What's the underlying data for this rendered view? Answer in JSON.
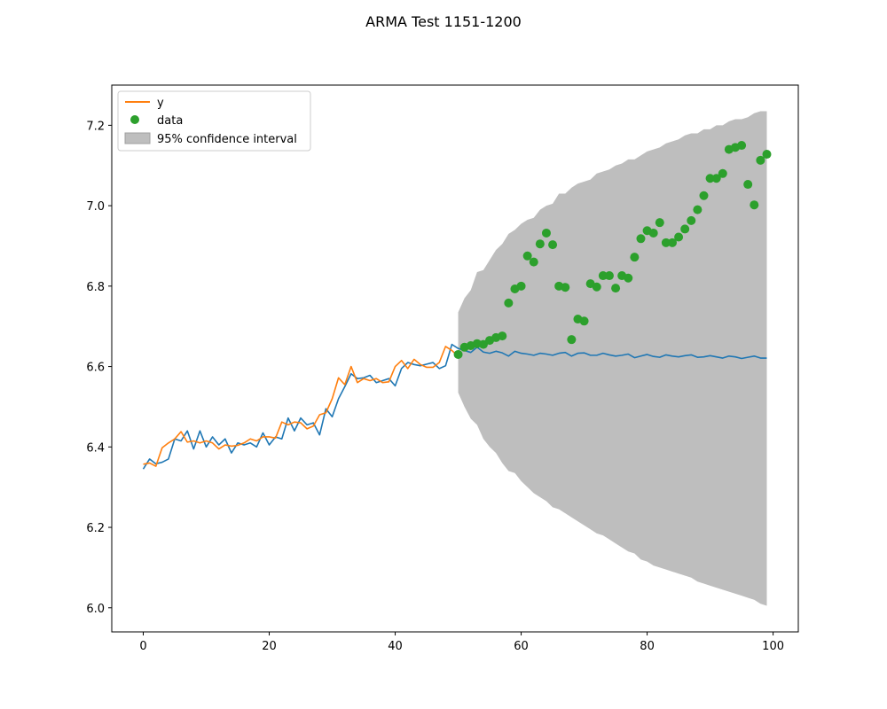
{
  "chart_data": {
    "type": "line",
    "title": "ARMA Test 1151-1200",
    "xlabel": "",
    "ylabel": "",
    "xlim": [
      -5,
      104
    ],
    "ylim": [
      5.94,
      7.3
    ],
    "xticks": [
      0,
      20,
      40,
      60,
      80,
      100
    ],
    "yticks": [
      6.0,
      6.2,
      6.4,
      6.6,
      6.8,
      7.0,
      7.2
    ],
    "grid": false,
    "legend_position": "top-left",
    "legend": {
      "y_label": "y",
      "data_label": "data",
      "ci_label": "95% confidence interval"
    },
    "colors": {
      "fitted": "#1f77b4",
      "y": "#ff7f0e",
      "data": "#2ca02c",
      "ci": "#bebebe"
    },
    "series": [
      {
        "name": "",
        "color": "#1f77b4",
        "x": [
          0,
          1,
          2,
          3,
          4,
          5,
          6,
          7,
          8,
          9,
          10,
          11,
          12,
          13,
          14,
          15,
          16,
          17,
          18,
          19,
          20,
          21,
          22,
          23,
          24,
          25,
          26,
          27,
          28,
          29,
          30,
          31,
          32,
          33,
          34,
          35,
          36,
          37,
          38,
          39,
          40,
          41,
          42,
          43,
          44,
          45,
          46,
          47,
          48,
          49,
          50,
          51,
          52,
          53,
          54,
          55,
          56,
          57,
          58,
          59,
          60,
          61,
          62,
          63,
          64,
          65,
          66,
          67,
          68,
          69,
          70,
          71,
          72,
          73,
          74,
          75,
          76,
          77,
          78,
          79,
          80,
          81,
          82,
          83,
          84,
          85,
          86,
          87,
          88,
          89,
          90,
          91,
          92,
          93,
          94,
          95,
          96,
          97,
          98,
          99
        ],
        "values": [
          6.345,
          6.37,
          6.358,
          6.362,
          6.37,
          6.42,
          6.415,
          6.44,
          6.395,
          6.44,
          6.4,
          6.425,
          6.405,
          6.42,
          6.385,
          6.41,
          6.405,
          6.41,
          6.4,
          6.435,
          6.405,
          6.425,
          6.42,
          6.472,
          6.44,
          6.472,
          6.455,
          6.46,
          6.43,
          6.495,
          6.475,
          6.52,
          6.55,
          6.582,
          6.57,
          6.572,
          6.578,
          6.56,
          6.565,
          6.57,
          6.552,
          6.595,
          6.61,
          6.605,
          6.602,
          6.606,
          6.61,
          6.595,
          6.602,
          6.655,
          6.645,
          6.64,
          6.635,
          6.648,
          6.636,
          6.633,
          6.638,
          6.634,
          6.626,
          6.638,
          6.633,
          6.631,
          6.628,
          6.633,
          6.631,
          6.628,
          6.633,
          6.635,
          6.626,
          6.633,
          6.634,
          6.628,
          6.628,
          6.633,
          6.629,
          6.626,
          6.628,
          6.631,
          6.622,
          6.626,
          6.63,
          6.625,
          6.623,
          6.629,
          6.626,
          6.624,
          6.627,
          6.629,
          6.623,
          6.624,
          6.627,
          6.624,
          6.621,
          6.626,
          6.624,
          6.62,
          6.623,
          6.626,
          6.621,
          6.621
        ]
      },
      {
        "name": "y",
        "color": "#ff7f0e",
        "x": [
          0,
          1,
          2,
          3,
          4,
          5,
          6,
          7,
          8,
          9,
          10,
          11,
          12,
          13,
          14,
          15,
          16,
          17,
          18,
          19,
          20,
          21,
          22,
          23,
          24,
          25,
          26,
          27,
          28,
          29,
          30,
          31,
          32,
          33,
          34,
          35,
          36,
          37,
          38,
          39,
          40,
          41,
          42,
          43,
          44,
          45,
          46,
          47,
          48,
          49,
          50
        ],
        "values": [
          6.357,
          6.36,
          6.352,
          6.398,
          6.41,
          6.42,
          6.438,
          6.412,
          6.415,
          6.41,
          6.415,
          6.41,
          6.395,
          6.405,
          6.402,
          6.404,
          6.41,
          6.42,
          6.415,
          6.425,
          6.425,
          6.422,
          6.462,
          6.455,
          6.462,
          6.46,
          6.445,
          6.452,
          6.48,
          6.485,
          6.52,
          6.572,
          6.555,
          6.6,
          6.56,
          6.57,
          6.565,
          6.57,
          6.56,
          6.562,
          6.6,
          6.615,
          6.595,
          6.618,
          6.605,
          6.598,
          6.598,
          6.61,
          6.65,
          6.64,
          6.625
        ]
      }
    ],
    "data_points": {
      "name": "data",
      "color": "#2ca02c",
      "x": [
        50,
        51,
        52,
        53,
        54,
        55,
        56,
        57,
        58,
        59,
        60,
        61,
        62,
        63,
        64,
        65,
        66,
        67,
        68,
        69,
        70,
        71,
        72,
        73,
        74,
        75,
        76,
        77,
        78,
        79,
        80,
        81,
        82,
        83,
        84,
        85,
        86,
        87,
        88,
        89,
        90,
        91,
        92,
        93,
        94,
        95,
        96,
        97,
        98,
        99
      ],
      "values": [
        6.63,
        6.648,
        6.652,
        6.657,
        6.655,
        6.665,
        6.672,
        6.676,
        6.758,
        6.793,
        6.8,
        6.875,
        6.86,
        6.905,
        6.932,
        6.903,
        6.8,
        6.797,
        6.667,
        6.718,
        6.713,
        6.806,
        6.798,
        6.826,
        6.826,
        6.795,
        6.826,
        6.82,
        6.872,
        6.918,
        6.938,
        6.932,
        6.958,
        6.908,
        6.908,
        6.922,
        6.942,
        6.963,
        6.99,
        7.025,
        7.068,
        7.068,
        7.08,
        7.14,
        7.145,
        7.15,
        7.053,
        7.002,
        7.113,
        7.128
      ]
    },
    "confidence_interval": {
      "name": "95% confidence interval",
      "color": "#bebebe",
      "x": [
        50,
        51,
        52,
        53,
        54,
        55,
        56,
        57,
        58,
        59,
        60,
        61,
        62,
        63,
        64,
        65,
        66,
        67,
        68,
        69,
        70,
        71,
        72,
        73,
        74,
        75,
        76,
        77,
        78,
        79,
        80,
        81,
        82,
        83,
        84,
        85,
        86,
        87,
        88,
        89,
        90,
        91,
        92,
        93,
        94,
        95,
        96,
        97,
        98,
        99
      ],
      "upper": [
        6.735,
        6.77,
        6.79,
        6.835,
        6.84,
        6.865,
        6.89,
        6.905,
        6.93,
        6.94,
        6.955,
        6.965,
        6.97,
        6.99,
        7.0,
        7.005,
        7.03,
        7.03,
        7.045,
        7.055,
        7.06,
        7.065,
        7.08,
        7.085,
        7.09,
        7.1,
        7.105,
        7.115,
        7.115,
        7.125,
        7.135,
        7.14,
        7.145,
        7.155,
        7.16,
        7.165,
        7.175,
        7.18,
        7.18,
        7.19,
        7.19,
        7.2,
        7.2,
        7.21,
        7.215,
        7.215,
        7.22,
        7.23,
        7.235,
        7.235
      ],
      "lower": [
        6.535,
        6.5,
        6.47,
        6.455,
        6.42,
        6.4,
        6.385,
        6.36,
        6.34,
        6.335,
        6.315,
        6.3,
        6.285,
        6.275,
        6.265,
        6.25,
        6.245,
        6.235,
        6.225,
        6.215,
        6.205,
        6.195,
        6.185,
        6.18,
        6.17,
        6.16,
        6.15,
        6.14,
        6.135,
        6.12,
        6.115,
        6.105,
        6.1,
        6.095,
        6.09,
        6.085,
        6.08,
        6.075,
        6.065,
        6.06,
        6.055,
        6.05,
        6.045,
        6.04,
        6.035,
        6.03,
        6.025,
        6.02,
        6.01,
        6.005
      ]
    }
  }
}
